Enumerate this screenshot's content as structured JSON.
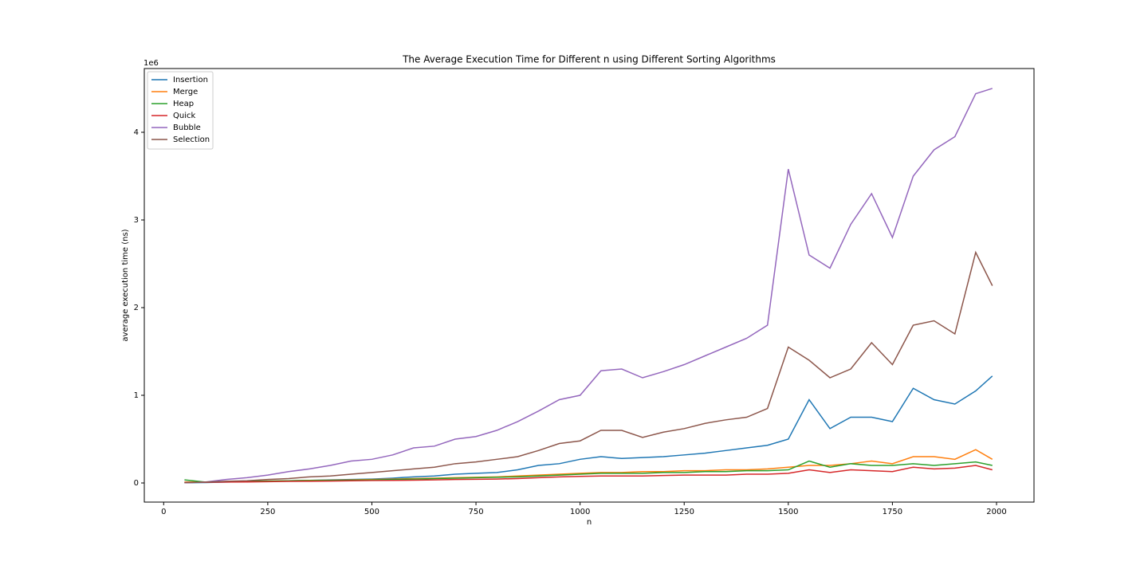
{
  "chart_data": {
    "type": "line",
    "title": "The Average Execution Time for Different n using Different Sorting Algorithms",
    "x_label": "n",
    "y_label": "average execution time (ns)",
    "y_offset_label": "1e6",
    "x": [
      50,
      100,
      150,
      200,
      250,
      300,
      350,
      400,
      450,
      500,
      550,
      600,
      650,
      700,
      750,
      800,
      850,
      900,
      950,
      1000,
      1050,
      1100,
      1150,
      1200,
      1250,
      1300,
      1350,
      1400,
      1450,
      1500,
      1550,
      1600,
      1650,
      1700,
      1750,
      1800,
      1850,
      1900,
      1950,
      1990
    ],
    "series": [
      {
        "name": "Insertion",
        "color": "#1f77b4",
        "values": [
          0.002,
          0.005,
          0.01,
          0.015,
          0.02,
          0.025,
          0.03,
          0.035,
          0.04,
          0.045,
          0.055,
          0.07,
          0.08,
          0.1,
          0.11,
          0.12,
          0.15,
          0.2,
          0.22,
          0.27,
          0.3,
          0.28,
          0.29,
          0.3,
          0.32,
          0.34,
          0.37,
          0.4,
          0.43,
          0.5,
          0.95,
          0.62,
          0.75,
          0.75,
          0.7,
          1.08,
          0.95,
          0.9,
          1.05,
          1.22
        ]
      },
      {
        "name": "Merge",
        "color": "#ff7f0e",
        "values": [
          0.01,
          0.012,
          0.015,
          0.02,
          0.022,
          0.025,
          0.03,
          0.032,
          0.035,
          0.04,
          0.045,
          0.05,
          0.055,
          0.06,
          0.065,
          0.07,
          0.08,
          0.09,
          0.1,
          0.11,
          0.12,
          0.12,
          0.13,
          0.13,
          0.14,
          0.14,
          0.15,
          0.15,
          0.16,
          0.18,
          0.2,
          0.2,
          0.22,
          0.25,
          0.22,
          0.3,
          0.3,
          0.27,
          0.38,
          0.27
        ]
      },
      {
        "name": "Heap",
        "color": "#2ca02c",
        "values": [
          0.035,
          0.01,
          0.015,
          0.02,
          0.022,
          0.025,
          0.028,
          0.03,
          0.032,
          0.035,
          0.04,
          0.045,
          0.05,
          0.055,
          0.06,
          0.065,
          0.07,
          0.08,
          0.09,
          0.1,
          0.11,
          0.11,
          0.11,
          0.12,
          0.12,
          0.13,
          0.13,
          0.14,
          0.14,
          0.15,
          0.25,
          0.18,
          0.22,
          0.2,
          0.2,
          0.22,
          0.2,
          0.22,
          0.24,
          0.2
        ]
      },
      {
        "name": "Quick",
        "color": "#d62728",
        "values": [
          0.005,
          0.008,
          0.01,
          0.012,
          0.015,
          0.018,
          0.02,
          0.022,
          0.025,
          0.028,
          0.03,
          0.032,
          0.035,
          0.04,
          0.042,
          0.045,
          0.05,
          0.06,
          0.07,
          0.075,
          0.08,
          0.08,
          0.08,
          0.085,
          0.09,
          0.09,
          0.09,
          0.1,
          0.1,
          0.11,
          0.15,
          0.12,
          0.15,
          0.14,
          0.13,
          0.18,
          0.16,
          0.17,
          0.2,
          0.15
        ]
      },
      {
        "name": "Bubble",
        "color": "#9467bd",
        "values": [
          0.003,
          0.01,
          0.04,
          0.06,
          0.09,
          0.13,
          0.16,
          0.2,
          0.25,
          0.27,
          0.32,
          0.4,
          0.42,
          0.5,
          0.53,
          0.6,
          0.7,
          0.82,
          0.95,
          1.0,
          1.28,
          1.3,
          1.2,
          1.27,
          1.35,
          1.45,
          1.55,
          1.65,
          1.8,
          3.58,
          2.6,
          2.45,
          2.95,
          3.3,
          2.8,
          3.5,
          3.8,
          3.95,
          4.44,
          4.5
        ]
      },
      {
        "name": "Selection",
        "color": "#8c564b",
        "values": [
          0.005,
          0.01,
          0.02,
          0.025,
          0.04,
          0.05,
          0.07,
          0.08,
          0.1,
          0.12,
          0.14,
          0.16,
          0.18,
          0.22,
          0.24,
          0.27,
          0.3,
          0.37,
          0.45,
          0.48,
          0.6,
          0.6,
          0.52,
          0.58,
          0.62,
          0.68,
          0.72,
          0.75,
          0.85,
          1.55,
          1.4,
          1.2,
          1.3,
          1.6,
          1.35,
          1.8,
          1.85,
          1.7,
          2.63,
          2.25
        ]
      }
    ],
    "xlim": [
      -46.5,
      2090
    ],
    "ylim": [
      -0.218,
      4.727
    ],
    "xticks": [
      0,
      250,
      500,
      750,
      1000,
      1250,
      1500,
      1750,
      2000
    ],
    "yticks": [
      0,
      1,
      2,
      3,
      4
    ],
    "legend": "upper left"
  }
}
